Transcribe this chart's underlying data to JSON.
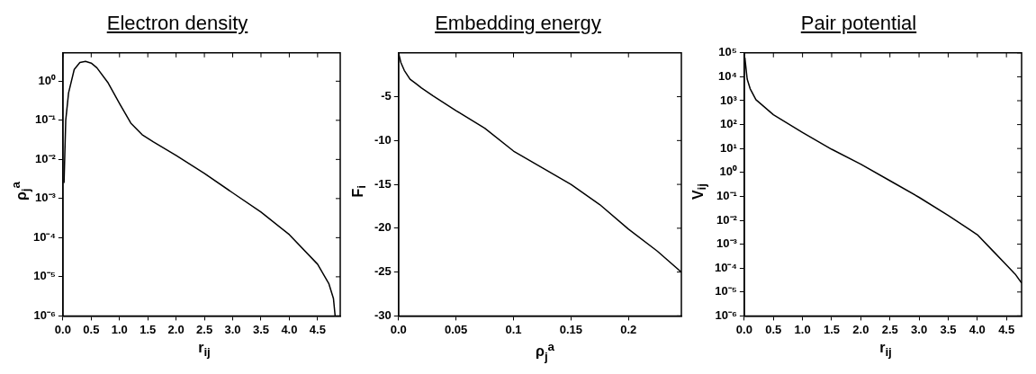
{
  "chart_data": [
    {
      "type": "line",
      "title": "Electron density",
      "xlabel": "r$_{ij}$",
      "ylabel": "ρ$_{j}$$^{a}$",
      "log": "y",
      "color": "#000000",
      "x": [
        0.02,
        0.05,
        0.1,
        0.2,
        0.3,
        0.4,
        0.5,
        0.6,
        0.8,
        1.0,
        1.2,
        1.4,
        1.6,
        2.0,
        2.5,
        3.0,
        3.5,
        4.0,
        4.5,
        4.7,
        4.78,
        4.81
      ],
      "values": [
        0.0025,
        0.1,
        0.5,
        2,
        3,
        3.2,
        2.9,
        2.2,
        0.9,
        0.27,
        0.085,
        0.043,
        0.028,
        0.0126,
        0.0044,
        0.0014,
        0.00045,
        0.00012,
        2.1e-05,
        6.6e-06,
        2.8e-06,
        1e-06
      ],
      "xlim": [
        0,
        4.9
      ],
      "ylim": [
        1e-06,
        5.3
      ],
      "xticks": [
        {
          "value": 0,
          "label": "0.0"
        },
        0.5,
        {
          "value": 1,
          "label": "1.0"
        },
        1.5,
        {
          "value": 2,
          "label": "2.0"
        },
        2.5,
        {
          "value": 3,
          "label": "3.0"
        },
        3.5,
        {
          "value": 4,
          "label": "4.0"
        },
        4.5
      ],
      "yticks": [
        {
          "value": 1e-06,
          "label": "10⁻⁶"
        },
        {
          "value": 1e-05,
          "label": "10⁻⁵"
        },
        {
          "value": 0.0001,
          "label": "10⁻⁴"
        },
        {
          "value": 0.001,
          "label": "10⁻³"
        },
        {
          "value": 0.01,
          "label": "10⁻²"
        },
        {
          "value": 0.1,
          "label": "10⁻¹"
        },
        {
          "value": 1,
          "label": "10⁰"
        }
      ]
    },
    {
      "type": "line",
      "title": "Embedding energy",
      "xlabel": "ρ$_{j}$$^{a}$",
      "ylabel": "F$_{i}$",
      "color": "#000000",
      "x": [
        0,
        0.002,
        0.005,
        0.01,
        0.015,
        0.02,
        0.03,
        0.05,
        0.075,
        0.1,
        0.125,
        0.15,
        0.175,
        0.2,
        0.225,
        0.246
      ],
      "values": [
        0,
        -1.1,
        -2,
        -3,
        -3.5,
        -4,
        -4.9,
        -6.6,
        -8.6,
        -11.2,
        -13.1,
        -15,
        -17.3,
        -20.1,
        -22.6,
        -25
      ],
      "xlim": [
        0,
        0.246
      ],
      "ylim": [
        -30,
        0
      ],
      "xticks": [
        {
          "value": 0,
          "label": "0.0"
        },
        0.05,
        0.1,
        0.15,
        0.2
      ],
      "yticks": [
        -30,
        -25,
        -20,
        -15,
        -10,
        -5
      ]
    },
    {
      "type": "line",
      "title": "Pair potential",
      "xlabel": "r$_{ij}$",
      "ylabel": "V$_{ij}$",
      "log": "y",
      "color": "#000000",
      "x": [
        0.01,
        0.05,
        0.1,
        0.2,
        0.5,
        1.0,
        1.5,
        2.0,
        2.5,
        3.0,
        3.5,
        4.0,
        4.25,
        4.5,
        4.65,
        4.76
      ],
      "values": [
        63000,
        8000,
        3200,
        1100,
        260,
        47,
        9.3,
        2.2,
        0.45,
        0.091,
        0.016,
        0.0025,
        0.00058,
        0.000135,
        5.6e-05,
        2.4e-05
      ],
      "xlim": [
        0,
        4.76
      ],
      "ylim": [
        1e-06,
        100000
      ],
      "xticks": [
        {
          "value": 0,
          "label": "0.0"
        },
        0.5,
        {
          "value": 1,
          "label": "1.0"
        },
        1.5,
        {
          "value": 2,
          "label": "2.0"
        },
        2.5,
        {
          "value": 3,
          "label": "3.0"
        },
        3.5,
        {
          "value": 4,
          "label": "4.0"
        },
        4.5
      ],
      "yticks": [
        {
          "value": 1e-06,
          "label": "10⁻⁶"
        },
        {
          "value": 1e-05,
          "label": "10⁻⁵"
        },
        {
          "value": 0.0001,
          "label": "10⁻⁴"
        },
        {
          "value": 0.001,
          "label": "10⁻³"
        },
        {
          "value": 0.01,
          "label": "10⁻²"
        },
        {
          "value": 0.1,
          "label": "10⁻¹"
        },
        {
          "value": 1,
          "label": "10⁰"
        },
        {
          "value": 10,
          "label": "10¹"
        },
        {
          "value": 100,
          "label": "10²"
        },
        {
          "value": 1000,
          "label": "10³"
        },
        {
          "value": 10000,
          "label": "10⁴"
        },
        {
          "value": 100000,
          "label": "10⁵"
        }
      ]
    }
  ]
}
